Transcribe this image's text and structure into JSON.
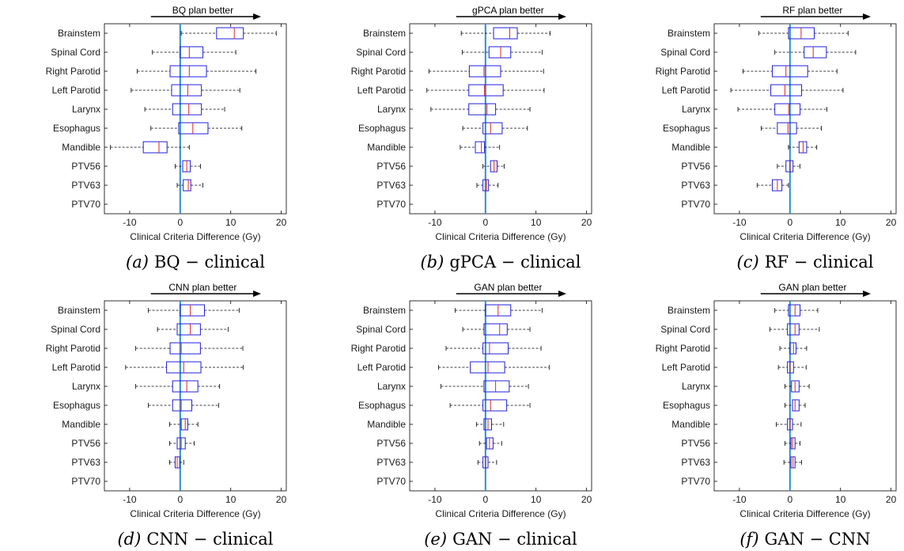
{
  "chart_data": [
    {
      "type": "boxplot",
      "caption_letter": "(a)",
      "caption_text": "BQ − clinical",
      "arrow_label": "BQ plan better",
      "xlabel": "Clinical Criteria Difference (Gy)",
      "xlim": [
        -15,
        21
      ],
      "xticks": [
        -10,
        0,
        10,
        20
      ],
      "categories": [
        "Brainstem",
        "Spinal Cord",
        "Right Parotid",
        "Left Parotid",
        "Larynx",
        "Esophagus",
        "Mandible",
        "PTV56",
        "PTV63",
        "PTV70"
      ],
      "boxes": [
        {
          "wlo": 0.2,
          "q1": 7.2,
          "med": 10.7,
          "q3": 12.5,
          "whi": 19.0
        },
        {
          "wlo": -5.5,
          "q1": 0,
          "med": 1.8,
          "q3": 4.5,
          "whi": 11.0
        },
        {
          "wlo": -8.5,
          "q1": -2.0,
          "med": 1.8,
          "q3": 5.2,
          "whi": 15.0
        },
        {
          "wlo": -9.7,
          "q1": -1.7,
          "med": 1.5,
          "q3": 4.2,
          "whi": 11.8
        },
        {
          "wlo": -7.0,
          "q1": -1.5,
          "med": 1.7,
          "q3": 4.2,
          "whi": 8.8
        },
        {
          "wlo": -5.8,
          "q1": -0.3,
          "med": 2.5,
          "q3": 5.5,
          "whi": 12.2
        },
        {
          "wlo": -13.8,
          "q1": -7.3,
          "med": -4.2,
          "q3": -2.6,
          "whi": 1.8
        },
        {
          "wlo": -1.0,
          "q1": 0.5,
          "med": 1.3,
          "q3": 2.0,
          "whi": 4.0
        },
        {
          "wlo": -0.6,
          "q1": 0.6,
          "med": 1.6,
          "q3": 2.1,
          "whi": 4.5
        },
        null
      ]
    },
    {
      "type": "boxplot",
      "caption_letter": "(b)",
      "caption_text": "gPCA − clinical",
      "arrow_label": "gPCA plan better",
      "xlabel": "Clinical Criteria Difference (Gy)",
      "xlim": [
        -15,
        21
      ],
      "xticks": [
        -10,
        0,
        10,
        20
      ],
      "categories": [
        "Brainstem",
        "Spinal Cord",
        "Right Parotid",
        "Left Parotid",
        "Larynx",
        "Esophagus",
        "Mandible",
        "PTV56",
        "PTV63",
        "PTV70"
      ],
      "boxes": [
        {
          "wlo": -4.8,
          "q1": 1.6,
          "med": 4.8,
          "q3": 6.3,
          "whi": 12.8
        },
        {
          "wlo": -4.6,
          "q1": 0.7,
          "med": 3.0,
          "q3": 5.0,
          "whi": 11.2
        },
        {
          "wlo": -11.2,
          "q1": -3.2,
          "med": -0.3,
          "q3": 3.0,
          "whi": 11.5
        },
        {
          "wlo": -11.6,
          "q1": -3.3,
          "med": -0.2,
          "q3": 3.5,
          "whi": 11.6
        },
        {
          "wlo": -10.8,
          "q1": -3.3,
          "med": 0.3,
          "q3": 2.0,
          "whi": 8.8
        },
        {
          "wlo": -4.5,
          "q1": -0.5,
          "med": 1.0,
          "q3": 3.3,
          "whi": 8.3
        },
        {
          "wlo": -5.0,
          "q1": -2.0,
          "med": -0.8,
          "q3": -0.2,
          "whi": 2.8
        },
        {
          "wlo": -0.5,
          "q1": 1.0,
          "med": 1.7,
          "q3": 2.3,
          "whi": 3.7
        },
        {
          "wlo": -1.7,
          "q1": -0.5,
          "med": 0.2,
          "q3": 0.6,
          "whi": 2.5
        },
        null
      ]
    },
    {
      "type": "boxplot",
      "caption_letter": "(c)",
      "caption_text": "RF − clinical",
      "arrow_label": "RF plan better",
      "xlabel": "Clinical Criteria Difference (Gy)",
      "xlim": [
        -15,
        21
      ],
      "xticks": [
        -10,
        0,
        10,
        20
      ],
      "categories": [
        "Brainstem",
        "Spinal Cord",
        "Right Parotid",
        "Left Parotid",
        "Larynx",
        "Esophagus",
        "Mandible",
        "PTV56",
        "PTV63",
        "PTV70"
      ],
      "boxes": [
        {
          "wlo": -6.2,
          "q1": -0.3,
          "med": 2.2,
          "q3": 4.8,
          "whi": 11.5
        },
        {
          "wlo": -3.0,
          "q1": 2.8,
          "med": 4.6,
          "q3": 7.2,
          "whi": 13.0
        },
        {
          "wlo": -9.3,
          "q1": -3.5,
          "med": -0.8,
          "q3": 3.5,
          "whi": 9.3
        },
        {
          "wlo": -11.7,
          "q1": -3.8,
          "med": -1.0,
          "q3": 2.3,
          "whi": 10.5
        },
        {
          "wlo": -10.3,
          "q1": -3.0,
          "med": -0.2,
          "q3": 2.0,
          "whi": 7.3
        },
        {
          "wlo": -5.7,
          "q1": -2.5,
          "med": -0.4,
          "q3": 1.3,
          "whi": 6.2
        },
        {
          "wlo": -0.3,
          "q1": 1.8,
          "med": 2.6,
          "q3": 3.3,
          "whi": 5.3
        },
        {
          "wlo": -2.5,
          "q1": -0.8,
          "med": 0.0,
          "q3": 0.6,
          "whi": 2.0
        },
        {
          "wlo": -6.5,
          "q1": -3.5,
          "med": -2.5,
          "q3": -1.6,
          "whi": -0.3
        },
        null
      ]
    },
    {
      "type": "boxplot",
      "caption_letter": "(d)",
      "caption_text": "CNN − clinical",
      "arrow_label": "CNN plan better",
      "xlabel": "Clinical Criteria Difference (Gy)",
      "xlim": [
        -15,
        21
      ],
      "xticks": [
        -10,
        0,
        10,
        20
      ],
      "categories": [
        "Brainstem",
        "Spinal Cord",
        "Right Parotid",
        "Left Parotid",
        "Larynx",
        "Esophagus",
        "Mandible",
        "PTV56",
        "PTV63",
        "PTV70"
      ],
      "boxes": [
        {
          "wlo": -6.3,
          "q1": 0.0,
          "med": 2.0,
          "q3": 4.8,
          "whi": 11.7
        },
        {
          "wlo": -4.5,
          "q1": -0.6,
          "med": 2.0,
          "q3": 4.0,
          "whi": 9.5
        },
        {
          "wlo": -8.8,
          "q1": -2.0,
          "med": 0.2,
          "q3": 4.0,
          "whi": 12.4
        },
        {
          "wlo": -10.8,
          "q1": -2.7,
          "med": 0.7,
          "q3": 4.1,
          "whi": 12.5
        },
        {
          "wlo": -8.8,
          "q1": -1.5,
          "med": 1.3,
          "q3": 3.5,
          "whi": 7.8
        },
        {
          "wlo": -6.3,
          "q1": -1.5,
          "med": 0.2,
          "q3": 2.3,
          "whi": 7.6
        },
        {
          "wlo": -2.1,
          "q1": 0.2,
          "med": 1.0,
          "q3": 1.5,
          "whi": 3.5
        },
        {
          "wlo": -2.1,
          "q1": -0.6,
          "med": 0.2,
          "q3": 1.0,
          "whi": 2.8
        },
        {
          "wlo": -2.1,
          "q1": -1.0,
          "med": -0.6,
          "q3": -0.1,
          "whi": 0.7
        },
        null
      ]
    },
    {
      "type": "boxplot",
      "caption_letter": "(e)",
      "caption_text": "GAN − clinical",
      "arrow_label": "GAN plan better",
      "xlabel": "Clinical Criteria Difference (Gy)",
      "xlim": [
        -15,
        21
      ],
      "xticks": [
        -10,
        0,
        10,
        20
      ],
      "categories": [
        "Brainstem",
        "Spinal Cord",
        "Right Parotid",
        "Left Parotid",
        "Larynx",
        "Esophagus",
        "Mandible",
        "PTV56",
        "PTV63",
        "PTV70"
      ],
      "boxes": [
        {
          "wlo": -6.0,
          "q1": 0.0,
          "med": 2.5,
          "q3": 5.0,
          "whi": 11.2
        },
        {
          "wlo": -4.5,
          "q1": -0.3,
          "med": 2.8,
          "q3": 4.3,
          "whi": 8.8
        },
        {
          "wlo": -7.8,
          "q1": -0.5,
          "med": 0.8,
          "q3": 4.5,
          "whi": 11.0
        },
        {
          "wlo": -9.3,
          "q1": -3.0,
          "med": 0.5,
          "q3": 3.8,
          "whi": 12.6
        },
        {
          "wlo": -8.8,
          "q1": -0.3,
          "med": 2.0,
          "q3": 4.7,
          "whi": 8.5
        },
        {
          "wlo": -7.0,
          "q1": -0.5,
          "med": 1.0,
          "q3": 4.2,
          "whi": 8.8
        },
        {
          "wlo": -1.8,
          "q1": -0.3,
          "med": 0.5,
          "q3": 1.2,
          "whi": 3.6
        },
        {
          "wlo": -1.2,
          "q1": 0.2,
          "med": 0.8,
          "q3": 1.5,
          "whi": 3.2
        },
        {
          "wlo": -1.5,
          "q1": -0.5,
          "med": 0.0,
          "q3": 0.5,
          "whi": 2.2
        },
        null
      ]
    },
    {
      "type": "boxplot",
      "caption_letter": "(f)",
      "caption_text": "GAN − CNN",
      "arrow_label": "GAN plan better",
      "xlabel": "Clinical Criteria Difference (Gy)",
      "xlim": [
        -15,
        21
      ],
      "xticks": [
        -10,
        0,
        10,
        20
      ],
      "categories": [
        "Brainstem",
        "Spinal Cord",
        "Right Parotid",
        "Left Parotid",
        "Larynx",
        "Esophagus",
        "Mandible",
        "PTV56",
        "PTV63",
        "PTV70"
      ],
      "boxes": [
        {
          "wlo": -3.0,
          "q1": -0.3,
          "med": 1.0,
          "q3": 2.0,
          "whi": 5.5
        },
        {
          "wlo": -4.0,
          "q1": -0.5,
          "med": 1.0,
          "q3": 1.8,
          "whi": 5.8
        },
        {
          "wlo": -2.0,
          "q1": 0.0,
          "med": 0.7,
          "q3": 1.2,
          "whi": 3.3
        },
        {
          "wlo": -2.3,
          "q1": -0.5,
          "med": 0.0,
          "q3": 0.7,
          "whi": 3.2
        },
        {
          "wlo": -1.0,
          "q1": 0.3,
          "med": 1.0,
          "q3": 1.8,
          "whi": 3.8
        },
        {
          "wlo": -1.0,
          "q1": 0.5,
          "med": 1.0,
          "q3": 1.8,
          "whi": 3.0
        },
        {
          "wlo": -2.7,
          "q1": -0.5,
          "med": 0.0,
          "q3": 0.5,
          "whi": 2.2
        },
        {
          "wlo": -1.0,
          "q1": 0.2,
          "med": 0.5,
          "q3": 1.0,
          "whi": 2.0
        },
        {
          "wlo": -1.2,
          "q1": 0.2,
          "med": 0.6,
          "q3": 1.0,
          "whi": 2.3
        },
        null
      ]
    }
  ],
  "colors": {
    "box": "#1f1fdc",
    "median": "#e3242b",
    "zero_line": "#2f8fd0",
    "whisker": "#000000",
    "arrow": "#000000"
  }
}
